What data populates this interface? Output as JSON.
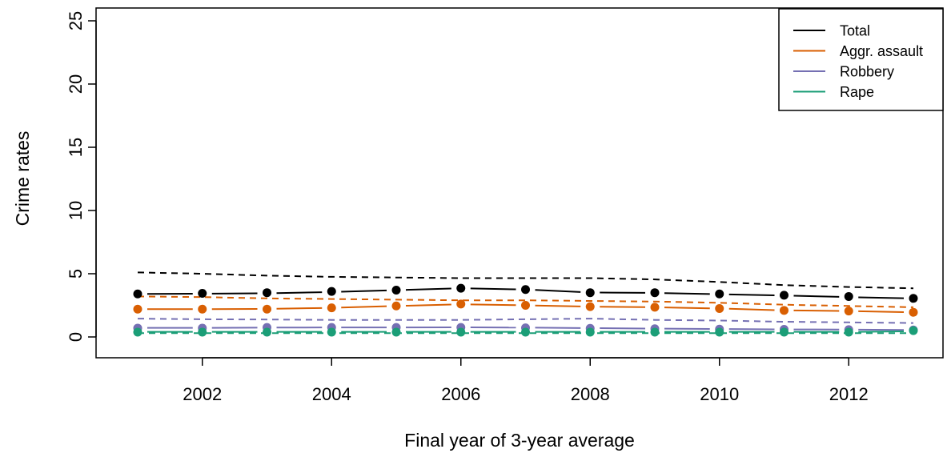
{
  "chart_data": {
    "type": "line",
    "xlabel": "Final year of 3-year average",
    "ylabel": "Crime rates",
    "xlim": [
      2000.7,
      2013.4
    ],
    "ylim": [
      0,
      25
    ],
    "x_ticks": [
      2002,
      2004,
      2006,
      2008,
      2010,
      2012
    ],
    "y_ticks": [
      0,
      5,
      10,
      15,
      20,
      25
    ],
    "grid": false,
    "legend_position": "top-right",
    "x": [
      2001,
      2002,
      2003,
      2004,
      2005,
      2006,
      2007,
      2008,
      2009,
      2010,
      2011,
      2012,
      2013
    ],
    "series": [
      {
        "name": "Total",
        "color": "#000000",
        "points": [
          3.4,
          3.45,
          3.5,
          3.6,
          3.7,
          3.85,
          3.75,
          3.5,
          3.5,
          3.4,
          3.3,
          3.2,
          3.05
        ],
        "solid": [
          3.4,
          3.42,
          3.45,
          3.55,
          3.7,
          3.85,
          3.75,
          3.52,
          3.48,
          3.38,
          3.28,
          3.15,
          3.05
        ],
        "dashed": [
          5.1,
          5.0,
          4.85,
          4.75,
          4.7,
          4.65,
          4.65,
          4.65,
          4.55,
          4.35,
          4.1,
          3.95,
          3.85
        ]
      },
      {
        "name": "Aggr. assault",
        "color": "#d95f02",
        "points": [
          2.2,
          2.2,
          2.2,
          2.3,
          2.45,
          2.6,
          2.5,
          2.4,
          2.35,
          2.25,
          2.1,
          2.05,
          1.95
        ],
        "solid": [
          2.2,
          2.2,
          2.22,
          2.3,
          2.45,
          2.58,
          2.5,
          2.4,
          2.35,
          2.25,
          2.1,
          2.05,
          1.95
        ],
        "dashed": [
          3.2,
          3.15,
          3.05,
          3.0,
          2.95,
          2.9,
          2.9,
          2.85,
          2.8,
          2.7,
          2.55,
          2.45,
          2.35
        ]
      },
      {
        "name": "Robbery",
        "color": "#7570b3",
        "points": [
          0.7,
          0.7,
          0.75,
          0.75,
          0.75,
          0.75,
          0.72,
          0.68,
          0.65,
          0.62,
          0.6,
          0.58,
          0.55
        ],
        "solid": [
          0.72,
          0.72,
          0.74,
          0.75,
          0.75,
          0.76,
          0.74,
          0.7,
          0.66,
          0.63,
          0.6,
          0.58,
          0.55
        ],
        "dashed": [
          1.45,
          1.4,
          1.38,
          1.35,
          1.35,
          1.35,
          1.4,
          1.45,
          1.35,
          1.3,
          1.2,
          1.15,
          1.1
        ]
      },
      {
        "name": "Rape",
        "color": "#1b9e77",
        "points": [
          0.38,
          0.38,
          0.38,
          0.38,
          0.38,
          0.38,
          0.38,
          0.38,
          0.38,
          0.38,
          0.38,
          0.38,
          0.5
        ],
        "solid": [
          0.4,
          0.4,
          0.4,
          0.4,
          0.4,
          0.4,
          0.4,
          0.4,
          0.4,
          0.4,
          0.4,
          0.4,
          0.45
        ],
        "dashed": [
          0.3,
          0.3,
          0.3,
          0.3,
          0.3,
          0.3,
          0.3,
          0.3,
          0.3,
          0.3,
          0.3,
          0.3,
          0.3
        ]
      }
    ]
  }
}
